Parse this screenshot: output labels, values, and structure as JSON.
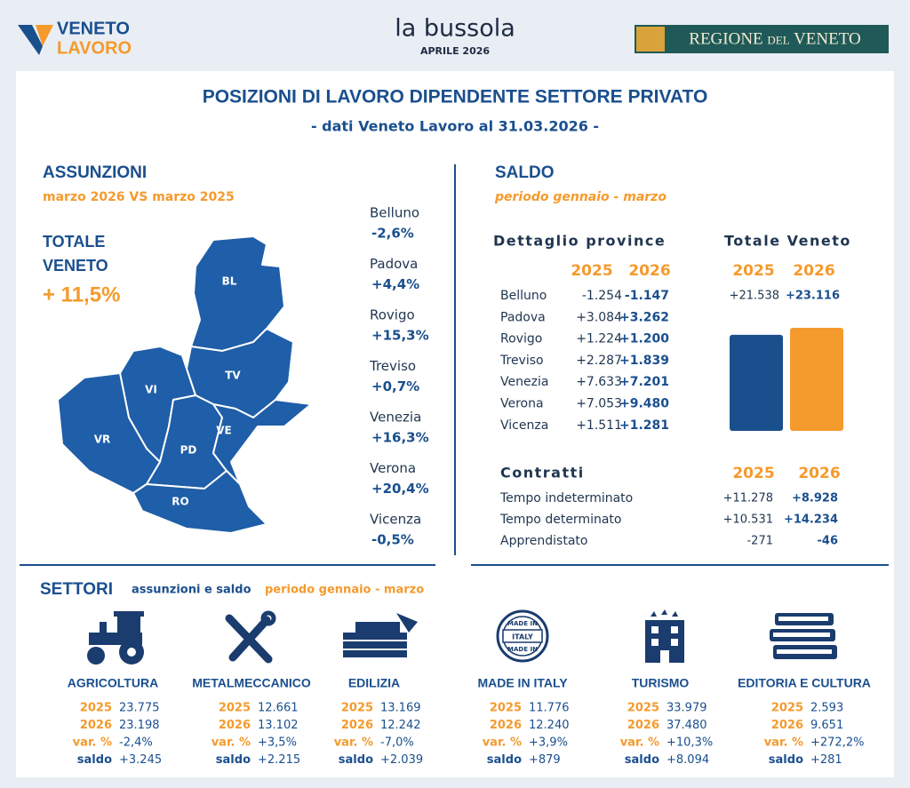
{
  "header": {
    "logo_left_top": "VENETO",
    "logo_left_bottom": "LAVORO",
    "center_title": "la bussola",
    "center_subtitle": "APRILE 2026",
    "logo_right": "REGIONE del VENETO"
  },
  "title": "POSIZIONI DI LAVORO DIPENDENTE SETTORE PRIVATO",
  "subtitle": "- dati Veneto Lavoro al 31.03.2026 -",
  "assunzioni": {
    "heading": "ASSUNZIONI",
    "period": "marzo 2026 VS marzo 2025",
    "total_label_1": "TOTALE",
    "total_label_2": "VENETO",
    "total_value": "+ 11,5%",
    "map_labels": [
      "BL",
      "VI",
      "TV",
      "VR",
      "PD",
      "VE",
      "RO"
    ],
    "provinces": [
      {
        "name": "Belluno",
        "value": "-2,6%"
      },
      {
        "name": "Padova",
        "value": "+4,4%"
      },
      {
        "name": "Rovigo",
        "value": "+15,3%"
      },
      {
        "name": "Treviso",
        "value": "+0,7%"
      },
      {
        "name": "Venezia",
        "value": "+16,3%"
      },
      {
        "name": "Verona",
        "value": "+20,4%"
      },
      {
        "name": "Vicenza",
        "value": "-0,5%"
      }
    ]
  },
  "saldo": {
    "heading": "SALDO",
    "period": "periodo gennaio - marzo",
    "detail_heading": "Dettaglio province",
    "total_heading": "Totale Veneto",
    "detail_years": [
      "2025",
      "2026"
    ],
    "total_years": [
      "2025",
      "2026"
    ],
    "rows": [
      {
        "name": "Belluno",
        "v2025": "-1.254",
        "v2026": "-1.147"
      },
      {
        "name": "Padova",
        "v2025": "+3.084",
        "v2026": "+3.262"
      },
      {
        "name": "Rovigo",
        "v2025": "+1.224",
        "v2026": "+1.200"
      },
      {
        "name": "Treviso",
        "v2025": "+2.287",
        "v2026": "+1.839"
      },
      {
        "name": "Venezia",
        "v2025": "+7.633",
        "v2026": "+7.201"
      },
      {
        "name": "Verona",
        "v2025": "+7.053",
        "v2026": "+9.480"
      },
      {
        "name": "Vicenza",
        "v2025": "+1.511",
        "v2026": "+1.281"
      }
    ],
    "total": {
      "v2025": "+21.538",
      "v2026": "+23.116"
    },
    "contracts_heading": "Contratti",
    "contract_years": [
      "2025",
      "2026"
    ],
    "contracts": [
      {
        "name": "Tempo indeterminato",
        "v2025": "+11.278",
        "v2026": "+8.928"
      },
      {
        "name": "Tempo determinato",
        "v2025": "+10.531",
        "v2026": "+14.234"
      },
      {
        "name": "Apprendistato",
        "v2025": "-271",
        "v2026": "-46"
      }
    ]
  },
  "settori": {
    "heading": "SETTORI",
    "subheading": "assunzioni e saldo",
    "subheading_period": "periodo gennaio - marzo",
    "icon_texts": {
      "made_in_top": "MADE IN",
      "made_in_middle": "ITALY",
      "made_in_bottom": "MADE IN"
    },
    "sectors": [
      {
        "name": "AGRICOLTURA",
        "rows": [
          [
            "2025",
            "23.775"
          ],
          [
            "2026",
            "23.198"
          ],
          [
            "var. %",
            "-2,4%"
          ],
          [
            "saldo",
            "+3.245"
          ]
        ]
      },
      {
        "name": "METALMECCANICO",
        "rows": [
          [
            "2025",
            "12.661"
          ],
          [
            "2026",
            "13.102"
          ],
          [
            "var. %",
            "+3,5%"
          ],
          [
            "saldo",
            "+2.215"
          ]
        ]
      },
      {
        "name": "EDILIZIA",
        "rows": [
          [
            "2025",
            "13.169"
          ],
          [
            "2026",
            "12.242"
          ],
          [
            "var. %",
            "-7,0%"
          ],
          [
            "saldo",
            "+2.039"
          ]
        ]
      },
      {
        "name": "MADE IN ITALY",
        "rows": [
          [
            "2025",
            "11.776"
          ],
          [
            "2026",
            "12.240"
          ],
          [
            "var. %",
            "+3,9%"
          ],
          [
            "saldo",
            "+879"
          ]
        ]
      },
      {
        "name": "TURISMO",
        "rows": [
          [
            "2025",
            "33.979"
          ],
          [
            "2026",
            "37.480"
          ],
          [
            "var. %",
            "+10,3%"
          ],
          [
            "saldo",
            "+8.094"
          ]
        ]
      },
      {
        "name": "EDITORIA E CULTURA",
        "rows": [
          [
            "2025",
            "2.593"
          ],
          [
            "2026",
            "9.651"
          ],
          [
            "var. %",
            "+272,2%"
          ],
          [
            "saldo",
            "+281"
          ]
        ]
      }
    ]
  }
}
